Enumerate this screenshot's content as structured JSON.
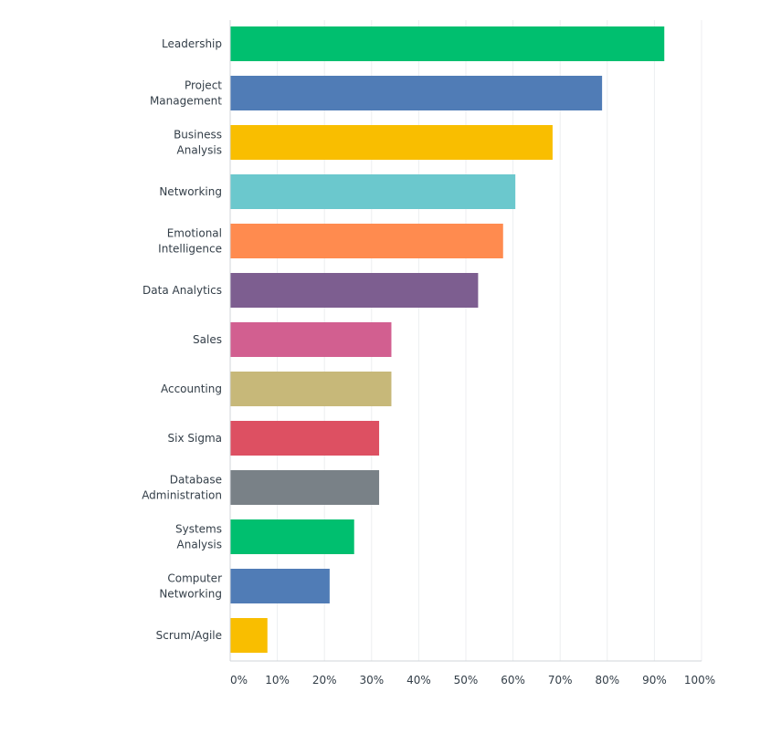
{
  "chart_data": {
    "type": "bar",
    "orientation": "horizontal",
    "categories": [
      [
        "Leadership"
      ],
      [
        "Project",
        "Management"
      ],
      [
        "Business",
        "Analysis"
      ],
      [
        "Networking"
      ],
      [
        "Emotional",
        "Intelligence"
      ],
      [
        "Data Analytics"
      ],
      [
        "Sales"
      ],
      [
        "Accounting"
      ],
      [
        "Six Sigma"
      ],
      [
        "Database",
        "Administration"
      ],
      [
        "Systems",
        "Analysis"
      ],
      [
        "Computer",
        "Networking"
      ],
      [
        "Scrum/Agile"
      ]
    ],
    "values": [
      92.1,
      78.9,
      68.4,
      60.5,
      57.9,
      52.6,
      34.2,
      34.2,
      31.6,
      31.6,
      26.3,
      21.1,
      7.9
    ],
    "colors": [
      "#00bf6f",
      "#507cb6",
      "#f9be00",
      "#6bc8cd",
      "#ff8b4f",
      "#7d5e90",
      "#d25f90",
      "#c7b879",
      "#dd5062",
      "#798187",
      "#00bf6f",
      "#507cb6",
      "#f9be00"
    ],
    "xlim": [
      0,
      100
    ],
    "xticks": [
      "0%",
      "10%",
      "20%",
      "30%",
      "40%",
      "50%",
      "60%",
      "70%",
      "80%",
      "90%",
      "100%"
    ],
    "grid": true,
    "title": "",
    "xlabel": "",
    "ylabel": ""
  }
}
